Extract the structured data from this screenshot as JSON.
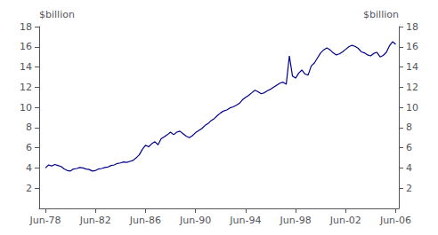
{
  "chart_data": {
    "type": "line",
    "color": "#00008B",
    "ylabel": "$billion",
    "y2label": "$billion",
    "grid": false,
    "xlim": [
      1978.0,
      2006.75
    ],
    "xticks": [
      {
        "value": 1978.5,
        "label": "Jun-78"
      },
      {
        "value": 1982.5,
        "label": "Jun-82"
      },
      {
        "value": 1986.5,
        "label": "Jun-86"
      },
      {
        "value": 1990.5,
        "label": "Jun-90"
      },
      {
        "value": 1994.5,
        "label": "Jun-94"
      },
      {
        "value": 1998.5,
        "label": "Jun-98"
      },
      {
        "value": 2002.5,
        "label": "Jun-02"
      },
      {
        "value": 2006.5,
        "label": "Jun-06"
      }
    ],
    "ylim": [
      0,
      18
    ],
    "yticks": [
      2,
      4,
      6,
      8,
      10,
      12,
      14,
      16,
      18
    ],
    "y2lim": [
      0,
      18
    ],
    "y2ticks": [
      2,
      4,
      6,
      8,
      10,
      12,
      14,
      16,
      18
    ],
    "x": [
      1978.5,
      1978.75,
      1979.0,
      1979.25,
      1979.5,
      1979.75,
      1980.0,
      1980.25,
      1980.5,
      1980.75,
      1981.0,
      1981.25,
      1981.5,
      1981.75,
      1982.0,
      1982.25,
      1982.5,
      1982.75,
      1983.0,
      1983.25,
      1983.5,
      1983.75,
      1984.0,
      1984.25,
      1984.5,
      1984.75,
      1985.0,
      1985.25,
      1985.5,
      1985.75,
      1986.0,
      1986.25,
      1986.5,
      1986.75,
      1987.0,
      1987.25,
      1987.5,
      1987.75,
      1988.0,
      1988.25,
      1988.5,
      1988.75,
      1989.0,
      1989.25,
      1989.5,
      1989.75,
      1990.0,
      1990.25,
      1990.5,
      1990.75,
      1991.0,
      1991.25,
      1991.5,
      1991.75,
      1992.0,
      1992.25,
      1992.5,
      1992.75,
      1993.0,
      1993.25,
      1993.5,
      1993.75,
      1994.0,
      1994.25,
      1994.5,
      1994.75,
      1995.0,
      1995.25,
      1995.5,
      1995.75,
      1996.0,
      1996.25,
      1996.5,
      1996.75,
      1997.0,
      1997.25,
      1997.5,
      1997.75,
      1998.0,
      1998.25,
      1998.5,
      1998.75,
      1999.0,
      1999.25,
      1999.5,
      1999.75,
      2000.0,
      2000.25,
      2000.5,
      2000.75,
      2001.0,
      2001.25,
      2001.5,
      2001.75,
      2002.0,
      2002.25,
      2002.5,
      2002.75,
      2003.0,
      2003.25,
      2003.5,
      2003.75,
      2004.0,
      2004.25,
      2004.5,
      2004.75,
      2005.0,
      2005.25,
      2005.5,
      2005.75,
      2006.0,
      2006.25,
      2006.5
    ],
    "values": [
      4.0,
      4.3,
      4.2,
      4.35,
      4.25,
      4.15,
      3.9,
      3.75,
      3.7,
      3.9,
      3.95,
      4.05,
      4.0,
      3.9,
      3.85,
      3.7,
      3.75,
      3.9,
      3.95,
      4.05,
      4.1,
      4.25,
      4.3,
      4.45,
      4.5,
      4.6,
      4.55,
      4.65,
      4.75,
      5.0,
      5.3,
      5.85,
      6.25,
      6.1,
      6.4,
      6.6,
      6.3,
      6.9,
      7.1,
      7.3,
      7.55,
      7.3,
      7.55,
      7.65,
      7.4,
      7.15,
      7.0,
      7.2,
      7.5,
      7.7,
      7.9,
      8.2,
      8.4,
      8.7,
      8.9,
      9.2,
      9.45,
      9.65,
      9.75,
      9.95,
      10.05,
      10.2,
      10.4,
      10.75,
      11.0,
      11.2,
      11.45,
      11.7,
      11.55,
      11.35,
      11.45,
      11.65,
      11.8,
      12.0,
      12.2,
      12.4,
      12.5,
      12.3,
      15.1,
      13.1,
      12.9,
      13.4,
      13.7,
      13.3,
      13.2,
      14.1,
      14.4,
      14.9,
      15.4,
      15.7,
      15.9,
      15.7,
      15.4,
      15.2,
      15.3,
      15.5,
      15.75,
      16.0,
      16.15,
      16.05,
      15.85,
      15.5,
      15.4,
      15.2,
      15.1,
      15.35,
      15.45,
      15.0,
      15.15,
      15.45,
      16.1,
      16.5,
      16.25
    ]
  }
}
